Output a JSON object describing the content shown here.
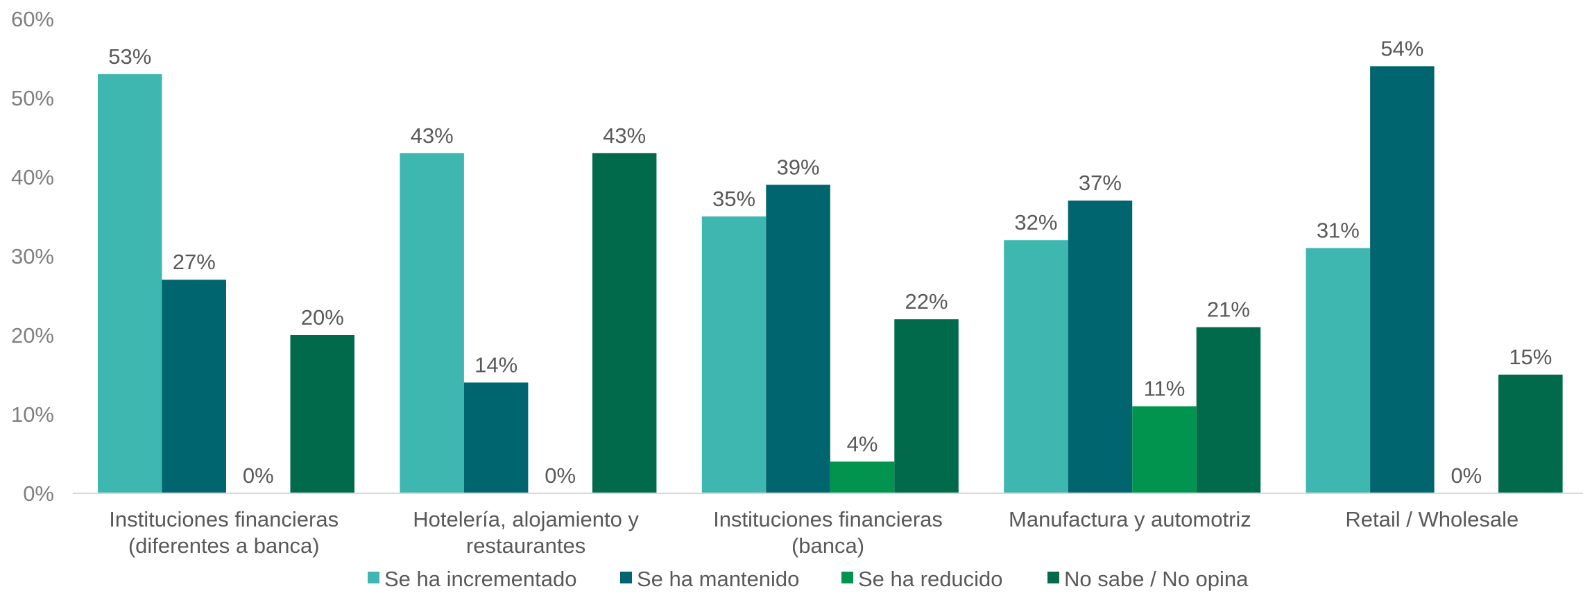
{
  "chart_data": {
    "type": "bar",
    "title": "",
    "xlabel": "",
    "ylabel": "",
    "ylim": [
      0,
      60
    ],
    "yticks": [
      0,
      10,
      20,
      30,
      40,
      50,
      60
    ],
    "ytick_format": "percent",
    "grid": false,
    "legend_position": "bottom",
    "categories": [
      [
        "Instituciones financieras",
        "(diferentes a banca)"
      ],
      [
        "Hotelería, alojamiento y",
        "restaurantes"
      ],
      [
        "Instituciones financieras",
        "(banca)"
      ],
      [
        "Manufactura y automotriz"
      ],
      [
        "Retail / Wholesale"
      ]
    ],
    "series": [
      {
        "name": "Se ha incrementado",
        "color": "#3DB7B0",
        "values": [
          53,
          43,
          35,
          32,
          31
        ]
      },
      {
        "name": "Se ha mantenido",
        "color": "#00656E",
        "values": [
          27,
          14,
          39,
          37,
          54
        ]
      },
      {
        "name": "Se ha reducido",
        "color": "#00944F",
        "values": [
          0,
          0,
          4,
          11,
          0
        ]
      },
      {
        "name": "No sabe / No opina",
        "color": "#006A4B",
        "values": [
          20,
          43,
          22,
          21,
          15
        ]
      }
    ]
  }
}
